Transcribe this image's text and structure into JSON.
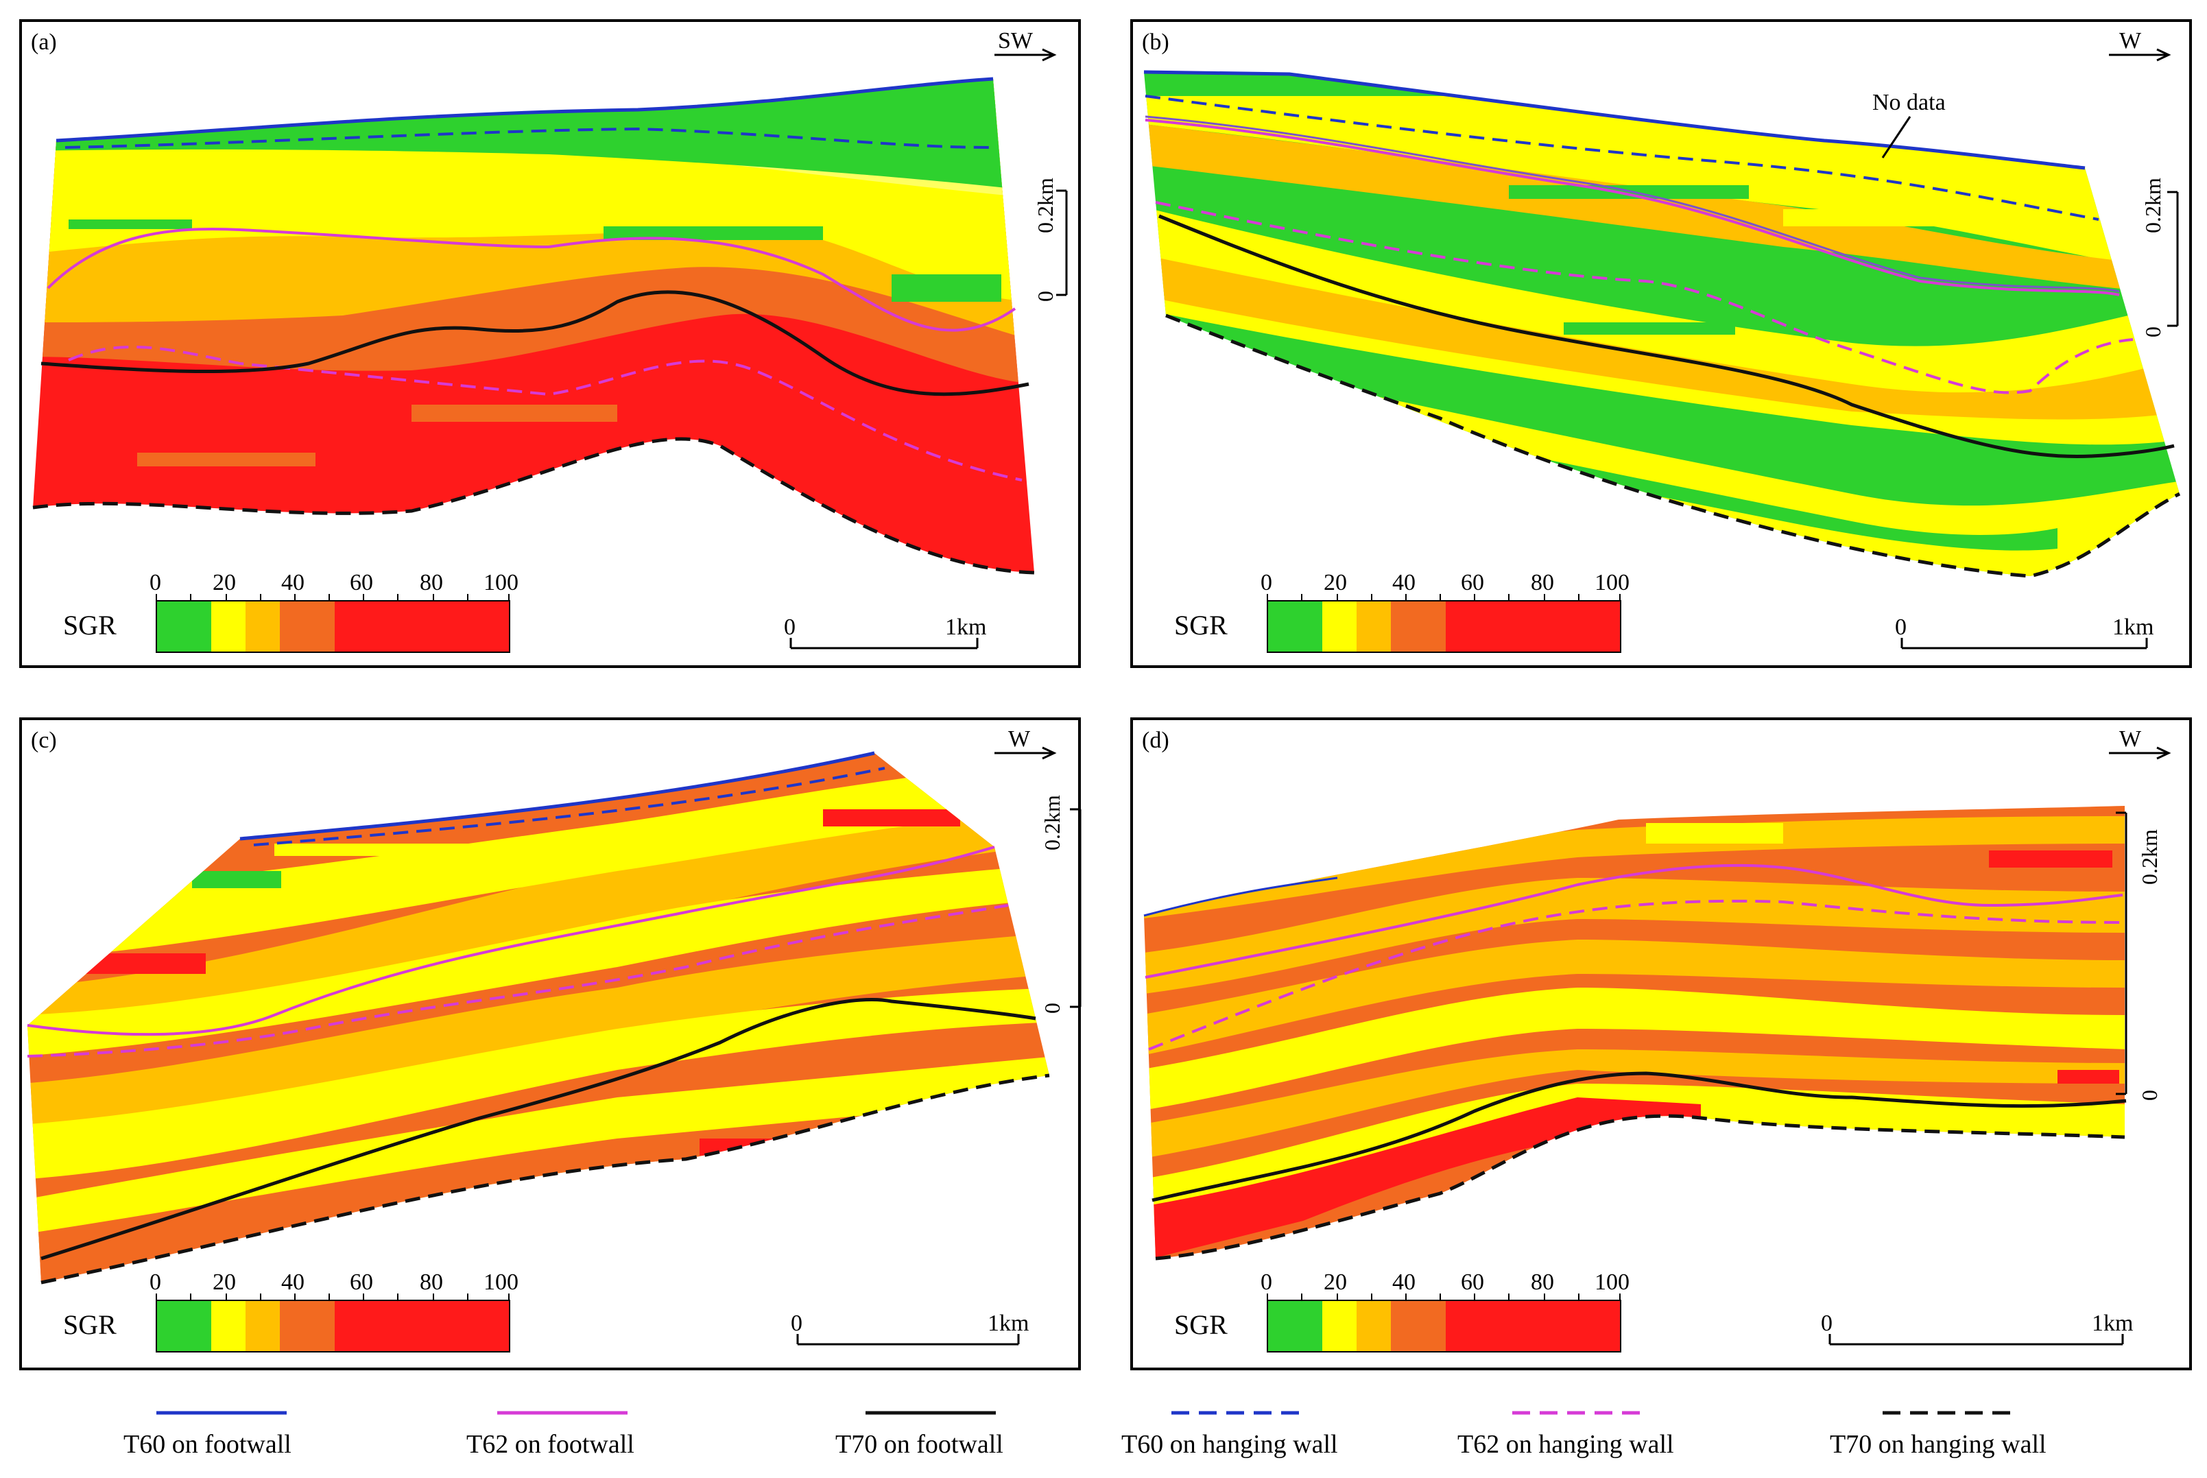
{
  "panels": [
    {
      "label": "(a)",
      "direction": "SW",
      "vscale_top": "0.2km",
      "vscale_zero": "0",
      "hscale_left": "0",
      "hscale_right": "1km",
      "note": ""
    },
    {
      "label": "(b)",
      "direction": "W",
      "vscale_top": "0.2km",
      "vscale_zero": "0",
      "hscale_left": "0",
      "hscale_right": "1km",
      "note": "No data"
    },
    {
      "label": "(c)",
      "direction": "W",
      "vscale_top": "0.2km",
      "vscale_zero": "0",
      "hscale_left": "0",
      "hscale_right": "1km",
      "note": ""
    },
    {
      "label": "(d)",
      "direction": "W",
      "vscale_top": "0.2km",
      "vscale_zero": "0",
      "hscale_left": "0",
      "hscale_right": "1km",
      "note": ""
    }
  ],
  "sgr_scale": {
    "label": "SGR",
    "ticks": [
      "0",
      "20",
      "40",
      "60",
      "80",
      "100"
    ],
    "bins": [
      {
        "range": "0-15",
        "color": "#2ed12e"
      },
      {
        "range": "15-25",
        "color": "#ffff00"
      },
      {
        "range": "25-35",
        "color": "#ffc000"
      },
      {
        "range": "35-50",
        "color": "#f26a21"
      },
      {
        "range": "50-100",
        "color": "#ff1a1a"
      }
    ]
  },
  "legend": [
    {
      "label": "T60 on footwall",
      "color": "#1f36c8",
      "style": "solid"
    },
    {
      "label": "T62 on footwall",
      "color": "#d63bd6",
      "style": "solid"
    },
    {
      "label": "T70 on footwall",
      "color": "#111111",
      "style": "solid"
    },
    {
      "label": "T60 on hanging wall",
      "color": "#1f36c8",
      "style": "dashed"
    },
    {
      "label": "T62 on hanging wall",
      "color": "#d63bd6",
      "style": "dashed"
    },
    {
      "label": "T70 on hanging wall",
      "color": "#111111",
      "style": "dashed"
    }
  ],
  "colors": {
    "no_data": "#6a6a6a",
    "frame": "#000000"
  }
}
